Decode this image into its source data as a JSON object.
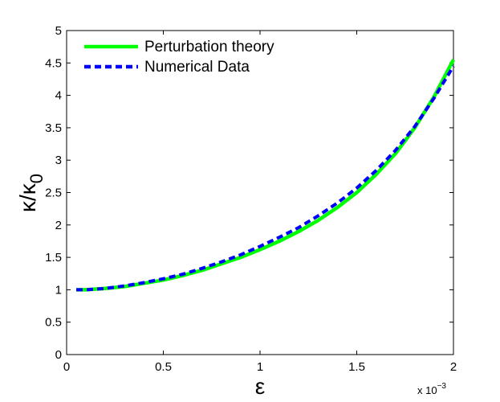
{
  "chart_data": {
    "type": "line",
    "xlabel": "ε",
    "ylabel": "κ/κ",
    "ylabel_subscript": "0",
    "x_multiplier_base": "x 10",
    "x_multiplier_exponent": "−3",
    "xlim": [
      0,
      2
    ],
    "ylim": [
      0,
      5
    ],
    "xticks": [
      "0",
      "0.5",
      "1",
      "1.5",
      "2"
    ],
    "yticks": [
      "0",
      "0.5",
      "1",
      "1.5",
      "2",
      "2.5",
      "3",
      "3.5",
      "4",
      "4.5",
      "5"
    ],
    "grid": false,
    "legend_position": "top-left",
    "series": [
      {
        "name": "Perturbation theory",
        "color": "#00ff00",
        "style": "solid",
        "x": [
          0.05,
          0.1,
          0.2,
          0.3,
          0.4,
          0.5,
          0.6,
          0.7,
          0.8,
          0.9,
          1.0,
          1.1,
          1.2,
          1.3,
          1.4,
          1.5,
          1.6,
          1.7,
          1.8,
          1.9,
          2.0
        ],
        "y": [
          1.0,
          1.0,
          1.02,
          1.05,
          1.1,
          1.15,
          1.22,
          1.3,
          1.4,
          1.5,
          1.62,
          1.75,
          1.9,
          2.07,
          2.27,
          2.5,
          2.78,
          3.1,
          3.5,
          3.98,
          4.55
        ]
      },
      {
        "name": "Numerical Data",
        "color": "#0000ff",
        "style": "dashed",
        "x": [
          0.05,
          0.1,
          0.2,
          0.3,
          0.4,
          0.5,
          0.6,
          0.7,
          0.8,
          0.9,
          1.0,
          1.1,
          1.2,
          1.3,
          1.4,
          1.5,
          1.6,
          1.7,
          1.8,
          1.9,
          2.0
        ],
        "y": [
          1.0,
          1.0,
          1.02,
          1.06,
          1.11,
          1.17,
          1.24,
          1.33,
          1.43,
          1.54,
          1.67,
          1.81,
          1.96,
          2.14,
          2.34,
          2.57,
          2.84,
          3.15,
          3.52,
          3.96,
          4.45
        ]
      }
    ]
  }
}
